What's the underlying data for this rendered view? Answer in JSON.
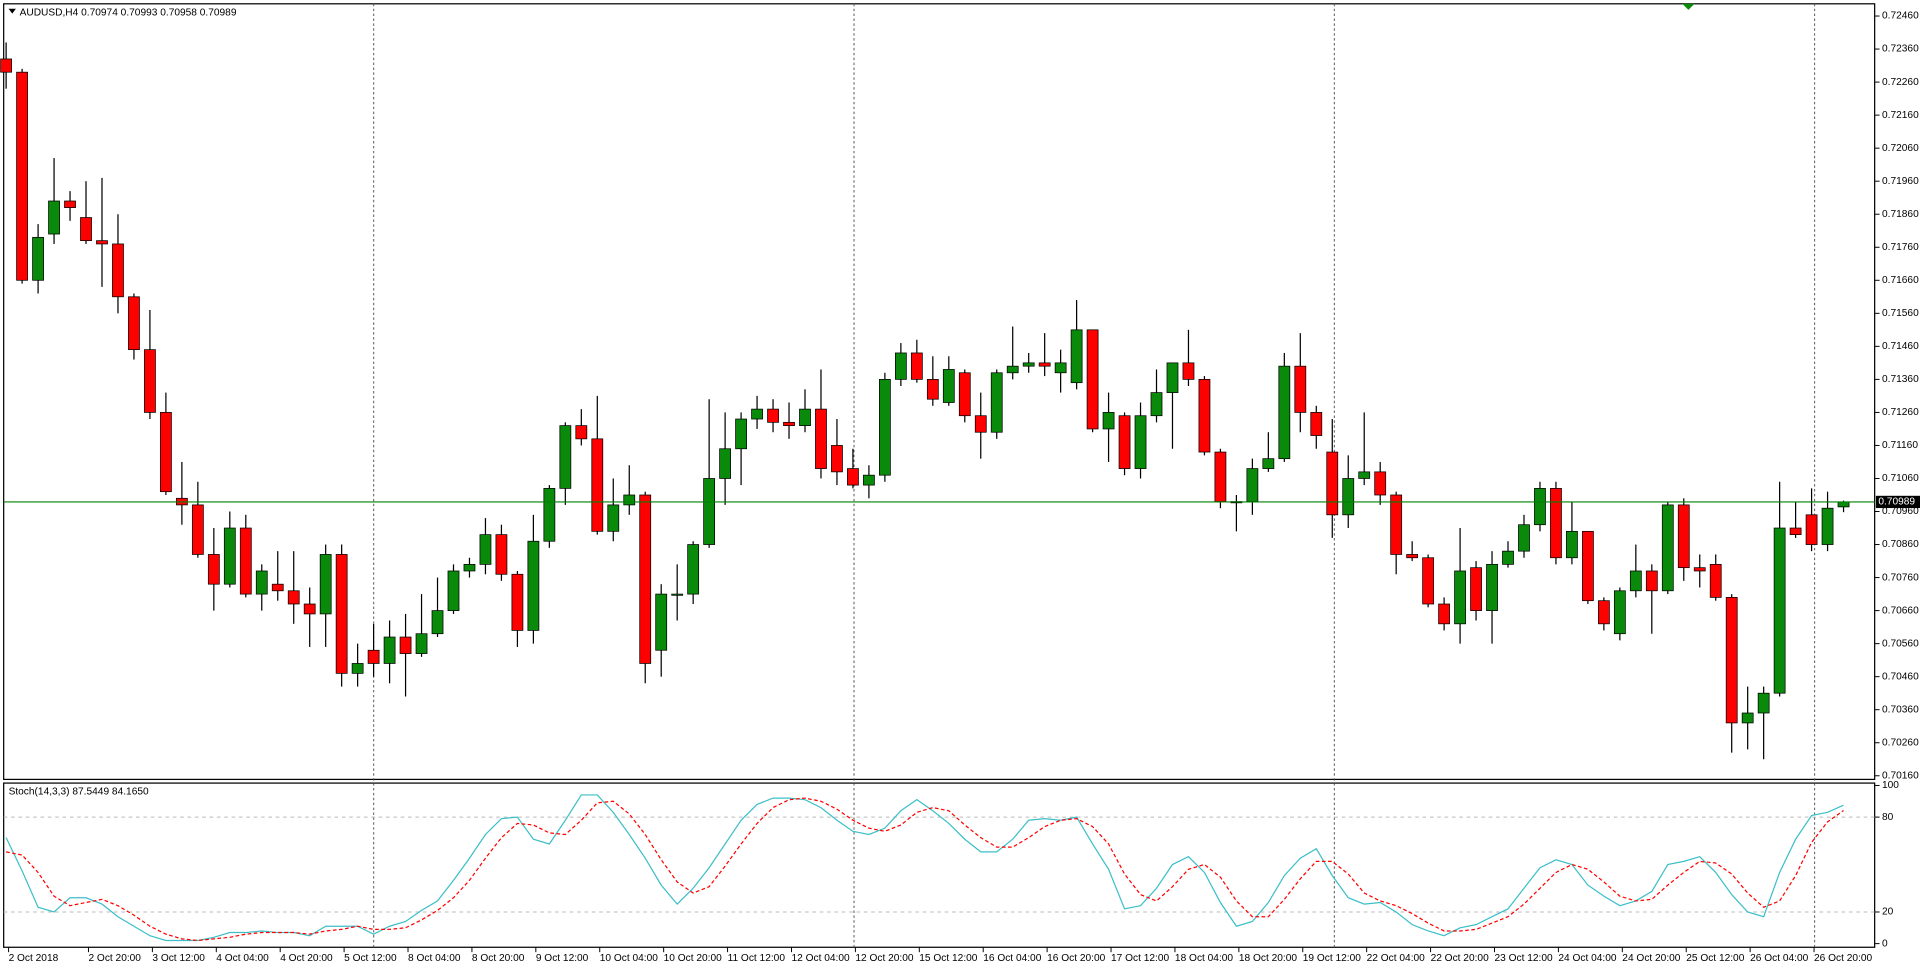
{
  "chart_data": [
    {
      "type": "candlestick",
      "title": "AUDUSD,H4",
      "categories": [
        "2 Oct 2018",
        null,
        null,
        null,
        null,
        "2 Oct 20:00",
        null,
        null,
        null,
        "3 Oct 12:00",
        null,
        null,
        null,
        "4 Oct 04:00",
        null,
        null,
        null,
        "4 Oct 20:00",
        null,
        null,
        null,
        "5 Oct 12:00",
        null,
        null,
        null,
        "8 Oct 04:00",
        null,
        null,
        null,
        "8 Oct 20:00",
        null,
        null,
        null,
        "9 Oct 12:00",
        null,
        null,
        null,
        "10 Oct 04:00",
        null,
        null,
        null,
        "10 Oct 20:00",
        null,
        null,
        null,
        "11 Oct 12:00",
        null,
        null,
        null,
        "12 Oct 04:00",
        null,
        null,
        null,
        "12 Oct 20:00",
        null,
        null,
        null,
        "15 Oct 12:00",
        null,
        null,
        null,
        "16 Oct 04:00",
        null,
        null,
        null,
        "16 Oct 20:00",
        null,
        null,
        null,
        "17 Oct 12:00",
        null,
        null,
        null,
        "18 Oct 04:00",
        null,
        null,
        null,
        "18 Oct 20:00",
        null,
        null,
        null,
        "19 Oct 12:00",
        null,
        null,
        null,
        "22 Oct 04:00",
        null,
        null,
        null,
        "22 Oct 20:00",
        null,
        null,
        null,
        "23 Oct 12:00",
        null,
        null,
        null,
        "24 Oct 04:00",
        null,
        null,
        null,
        "24 Oct 20:00",
        null,
        null,
        null,
        "25 Oct 12:00",
        null,
        null,
        null,
        "26 Oct 04:00",
        null,
        null,
        null,
        "26 Oct 20:00",
        null,
        null
      ],
      "open": [
        0.7233,
        0.7229,
        0.7166,
        0.718,
        0.719,
        0.7185,
        0.7178,
        0.7177,
        0.7161,
        0.7145,
        0.7126,
        0.71,
        0.7098,
        0.7083,
        0.7074,
        0.7091,
        0.7071,
        0.7074,
        0.7072,
        0.7068,
        0.7065,
        0.7083,
        0.7047,
        0.7054,
        0.705,
        0.7058,
        0.7053,
        0.7059,
        0.7066,
        0.7078,
        0.708,
        0.7089,
        0.7077,
        0.706,
        0.7087,
        0.7103,
        0.7122,
        0.7118,
        0.709,
        0.7098,
        0.7101,
        0.7054,
        0.7071,
        0.7071,
        0.7086,
        0.7106,
        0.7115,
        0.7124,
        0.7127,
        0.7123,
        0.7122,
        0.7127,
        0.7116,
        0.7109,
        0.7104,
        0.7107,
        0.7136,
        0.7144,
        0.7136,
        0.7129,
        0.7138,
        0.7125,
        0.712,
        0.7138,
        0.714,
        0.7141,
        0.7138,
        0.7135,
        0.7151,
        0.7121,
        0.7125,
        0.7109,
        0.7125,
        0.7132,
        0.7141,
        0.7136,
        0.7114,
        0.7099,
        0.7099,
        0.7109,
        0.7112,
        0.714,
        0.7126,
        0.7114,
        0.7095,
        0.7106,
        0.7108,
        0.7101,
        0.7083,
        0.7082,
        0.7068,
        0.7062,
        0.7079,
        0.7066,
        0.708,
        0.7084,
        0.7092,
        0.7103,
        0.7082,
        0.709,
        0.7069,
        0.7059,
        0.7072,
        0.7078,
        0.7072,
        0.7098,
        0.7079,
        0.708,
        0.707,
        0.7032,
        0.7035,
        0.7041,
        0.7091,
        0.7095,
        0.7086,
        0.70974
      ],
      "high": [
        0.7238,
        0.723,
        0.7183,
        0.7203,
        0.7193,
        0.7196,
        0.7197,
        0.7186,
        0.7162,
        0.7157,
        0.7132,
        0.7111,
        0.7105,
        0.7091,
        0.7096,
        0.7095,
        0.708,
        0.7084,
        0.7084,
        0.7073,
        0.7086,
        0.7086,
        0.7056,
        0.7062,
        0.7063,
        0.7065,
        0.7071,
        0.7076,
        0.708,
        0.7082,
        0.7094,
        0.7092,
        0.7078,
        0.7095,
        0.7104,
        0.7123,
        0.7127,
        0.7131,
        0.7106,
        0.711,
        0.7102,
        0.7074,
        0.708,
        0.7087,
        0.713,
        0.7126,
        0.7126,
        0.7131,
        0.713,
        0.7129,
        0.7133,
        0.7139,
        0.7124,
        0.7115,
        0.711,
        0.7138,
        0.7147,
        0.7148,
        0.7143,
        0.7143,
        0.7139,
        0.7132,
        0.7139,
        0.7152,
        0.7144,
        0.715,
        0.7145,
        0.716,
        0.7151,
        0.7132,
        0.7126,
        0.7129,
        0.7139,
        0.7141,
        0.7151,
        0.7137,
        0.7115,
        0.7101,
        0.7112,
        0.712,
        0.7144,
        0.715,
        0.7128,
        0.7124,
        0.7113,
        0.7126,
        0.7111,
        0.7102,
        0.7087,
        0.7083,
        0.707,
        0.7091,
        0.7081,
        0.7084,
        0.7087,
        0.7095,
        0.7105,
        0.7105,
        0.7099,
        0.709,
        0.707,
        0.7073,
        0.7086,
        0.708,
        0.7099,
        0.71,
        0.7083,
        0.7083,
        0.7071,
        0.7043,
        0.7043,
        0.7105,
        0.7099,
        0.7103,
        0.7102,
        0.70993
      ],
      "low": [
        0.7224,
        0.7165,
        0.7162,
        0.7177,
        0.7184,
        0.7177,
        0.7164,
        0.7156,
        0.7142,
        0.7124,
        0.7101,
        0.7092,
        0.7082,
        0.7066,
        0.7073,
        0.707,
        0.7066,
        0.7069,
        0.7062,
        0.7055,
        0.7055,
        0.7043,
        0.7043,
        0.7046,
        0.7044,
        0.704,
        0.7052,
        0.7058,
        0.7065,
        0.7076,
        0.7077,
        0.7075,
        0.7055,
        0.7056,
        0.7085,
        0.7098,
        0.7116,
        0.7089,
        0.7087,
        0.7095,
        0.7044,
        0.7046,
        0.7063,
        0.7068,
        0.7085,
        0.7098,
        0.7104,
        0.7121,
        0.712,
        0.7118,
        0.712,
        0.7106,
        0.7104,
        0.7103,
        0.71,
        0.7105,
        0.7134,
        0.7135,
        0.7128,
        0.7128,
        0.7123,
        0.7112,
        0.7118,
        0.7136,
        0.7138,
        0.7137,
        0.7132,
        0.7133,
        0.712,
        0.7111,
        0.7107,
        0.7106,
        0.7123,
        0.7115,
        0.7134,
        0.7113,
        0.7097,
        0.709,
        0.7095,
        0.7108,
        0.7111,
        0.712,
        0.7115,
        0.7088,
        0.7091,
        0.7104,
        0.7098,
        0.7077,
        0.7081,
        0.7067,
        0.706,
        0.7056,
        0.7063,
        0.7056,
        0.7079,
        0.7082,
        0.709,
        0.708,
        0.708,
        0.7068,
        0.706,
        0.7057,
        0.707,
        0.7059,
        0.7071,
        0.7075,
        0.7073,
        0.7069,
        0.7023,
        0.7024,
        0.7021,
        0.704,
        0.7088,
        0.7084,
        0.7084,
        0.70958
      ],
      "close": [
        0.7229,
        0.7166,
        0.7179,
        0.719,
        0.7188,
        0.7178,
        0.7177,
        0.7161,
        0.7145,
        0.7126,
        0.7102,
        0.7098,
        0.7083,
        0.7074,
        0.7091,
        0.7071,
        0.7078,
        0.7072,
        0.7068,
        0.7065,
        0.7083,
        0.7047,
        0.705,
        0.705,
        0.7058,
        0.7053,
        0.7059,
        0.7066,
        0.7078,
        0.708,
        0.7089,
        0.7077,
        0.706,
        0.7087,
        0.7103,
        0.7122,
        0.7118,
        0.709,
        0.7098,
        0.7101,
        0.705,
        0.7071,
        0.7071,
        0.7086,
        0.7106,
        0.7115,
        0.7124,
        0.7127,
        0.7123,
        0.7122,
        0.7127,
        0.7109,
        0.7108,
        0.7104,
        0.7107,
        0.7136,
        0.7144,
        0.7136,
        0.713,
        0.7139,
        0.7125,
        0.712,
        0.7138,
        0.714,
        0.7141,
        0.714,
        0.7141,
        0.7151,
        0.7121,
        0.7126,
        0.7109,
        0.7125,
        0.7132,
        0.7141,
        0.7136,
        0.7114,
        0.7099,
        0.7099,
        0.7109,
        0.7112,
        0.714,
        0.7126,
        0.7119,
        0.7095,
        0.7106,
        0.7108,
        0.7101,
        0.7083,
        0.7082,
        0.7068,
        0.7062,
        0.7078,
        0.7066,
        0.708,
        0.7084,
        0.7092,
        0.7103,
        0.7082,
        0.709,
        0.7069,
        0.7062,
        0.7072,
        0.7078,
        0.7072,
        0.7098,
        0.7079,
        0.7078,
        0.707,
        0.7032,
        0.7035,
        0.7041,
        0.7091,
        0.7089,
        0.7086,
        0.7097,
        0.70989
      ],
      "up_color": "#0a8a0a",
      "down_color": "#ff0000",
      "last_price_color": "#008000",
      "ylim": [
        0.70149,
        0.72497
      ],
      "yticks": [
        {
          "value": 0.7016,
          "label": "0.70160"
        },
        {
          "value": 0.7026,
          "label": "0.70260"
        },
        {
          "value": 0.7036,
          "label": "0.70360"
        },
        {
          "value": 0.7046,
          "label": "0.70460"
        },
        {
          "value": 0.7056,
          "label": "0.70560"
        },
        {
          "value": 0.7066,
          "label": "0.70660"
        },
        {
          "value": 0.7076,
          "label": "0.70760"
        },
        {
          "value": 0.7086,
          "label": "0.70860"
        },
        {
          "value": 0.7096,
          "label": "0.70960"
        },
        {
          "value": 0.7106,
          "label": "0.71060"
        },
        {
          "value": 0.7116,
          "label": "0.71160"
        },
        {
          "value": 0.7126,
          "label": "0.71260"
        },
        {
          "value": 0.7136,
          "label": "0.71360"
        },
        {
          "value": 0.7146,
          "label": "0.71460"
        },
        {
          "value": 0.7156,
          "label": "0.71560"
        },
        {
          "value": 0.7166,
          "label": "0.71660"
        },
        {
          "value": 0.7176,
          "label": "0.71760"
        },
        {
          "value": 0.7186,
          "label": "0.71860"
        },
        {
          "value": 0.7196,
          "label": "0.71960"
        },
        {
          "value": 0.7206,
          "label": "0.72060"
        },
        {
          "value": 0.7216,
          "label": "0.72160"
        },
        {
          "value": 0.7226,
          "label": "0.72260"
        },
        {
          "value": 0.7236,
          "label": "0.72360"
        },
        {
          "value": 0.7246,
          "label": "0.72460"
        }
      ]
    },
    {
      "type": "line",
      "title": "Stoch(14,3,3)",
      "series": [
        {
          "color": "#3cbfc8",
          "dashed": false,
          "values": [
            67,
            46,
            23,
            20,
            29,
            29,
            25,
            17,
            11,
            5,
            2,
            2,
            2,
            4,
            7,
            7,
            8,
            7,
            7,
            5,
            11,
            11,
            11,
            6,
            11,
            14,
            21,
            27,
            40,
            54,
            69,
            79,
            80,
            66,
            63,
            78,
            94,
            94,
            83,
            69,
            54,
            37,
            25,
            35,
            48,
            63,
            78,
            88,
            92,
            92,
            91,
            86,
            78,
            71,
            69,
            73,
            84,
            91,
            84,
            76,
            66,
            58,
            58,
            66,
            78,
            79,
            78,
            80,
            63,
            47,
            22,
            24,
            35,
            50,
            55,
            45,
            26,
            11,
            14,
            26,
            43,
            54,
            60,
            43,
            29,
            25,
            26,
            20,
            12,
            8,
            5,
            10,
            12,
            17,
            22,
            35,
            48,
            53,
            50,
            37,
            30,
            24,
            27,
            33,
            50,
            52,
            55,
            45,
            31,
            20,
            17,
            45,
            66,
            81,
            83,
            87.5449
          ]
        },
        {
          "color": "#ff0000",
          "dashed": true,
          "values": [
            58,
            56,
            45,
            30,
            24,
            26,
            28,
            24,
            18,
            11,
            6,
            3,
            2,
            3,
            4,
            6,
            7,
            7,
            7,
            6,
            8,
            9,
            11,
            9,
            9,
            10,
            15,
            21,
            29,
            40,
            54,
            67,
            76,
            75,
            70,
            69,
            78,
            89,
            90,
            82,
            69,
            53,
            39,
            32,
            36,
            49,
            63,
            76,
            86,
            91,
            92,
            90,
            85,
            78,
            73,
            71,
            75,
            83,
            86,
            84,
            75,
            67,
            61,
            61,
            67,
            74,
            78,
            79,
            74,
            63,
            44,
            31,
            27,
            36,
            47,
            50,
            42,
            27,
            17,
            17,
            28,
            41,
            52,
            52,
            44,
            32,
            27,
            24,
            19,
            13,
            8,
            8,
            9,
            13,
            17,
            25,
            35,
            45,
            50,
            47,
            39,
            30,
            27,
            28,
            37,
            45,
            52,
            51,
            44,
            32,
            23,
            27,
            43,
            64,
            77,
            84.165
          ],
          "value_labels": [
            null,
            null,
            null,
            null,
            null,
            null,
            null,
            null,
            null,
            null,
            null,
            null,
            null,
            null,
            null,
            null,
            null,
            null,
            null,
            null,
            null,
            null,
            null,
            null,
            null,
            null,
            null,
            null,
            null,
            null,
            null,
            null,
            null,
            null,
            null,
            null,
            null,
            null,
            null,
            null,
            null,
            null,
            null,
            null,
            null,
            null,
            null,
            null,
            null,
            null,
            null,
            null,
            null,
            null,
            null,
            null,
            null,
            null,
            null,
            null,
            null,
            null,
            null,
            null,
            null,
            null,
            null,
            null,
            null,
            null,
            null,
            null,
            null,
            null,
            null,
            null,
            null,
            null,
            null,
            null,
            null,
            null,
            null,
            null,
            null,
            null,
            null,
            null,
            null,
            null,
            null,
            null,
            null,
            null,
            null,
            null,
            null,
            null,
            null,
            null,
            null,
            null,
            null,
            null,
            null,
            null,
            null,
            null,
            null,
            null,
            null,
            null,
            null,
            null,
            null,
            "84.1650"
          ]
        }
      ],
      "ylim": [
        -2.3,
        101.5
      ],
      "yticks": [
        0,
        20,
        80,
        100
      ],
      "levels": [
        20,
        80
      ]
    }
  ]
}
